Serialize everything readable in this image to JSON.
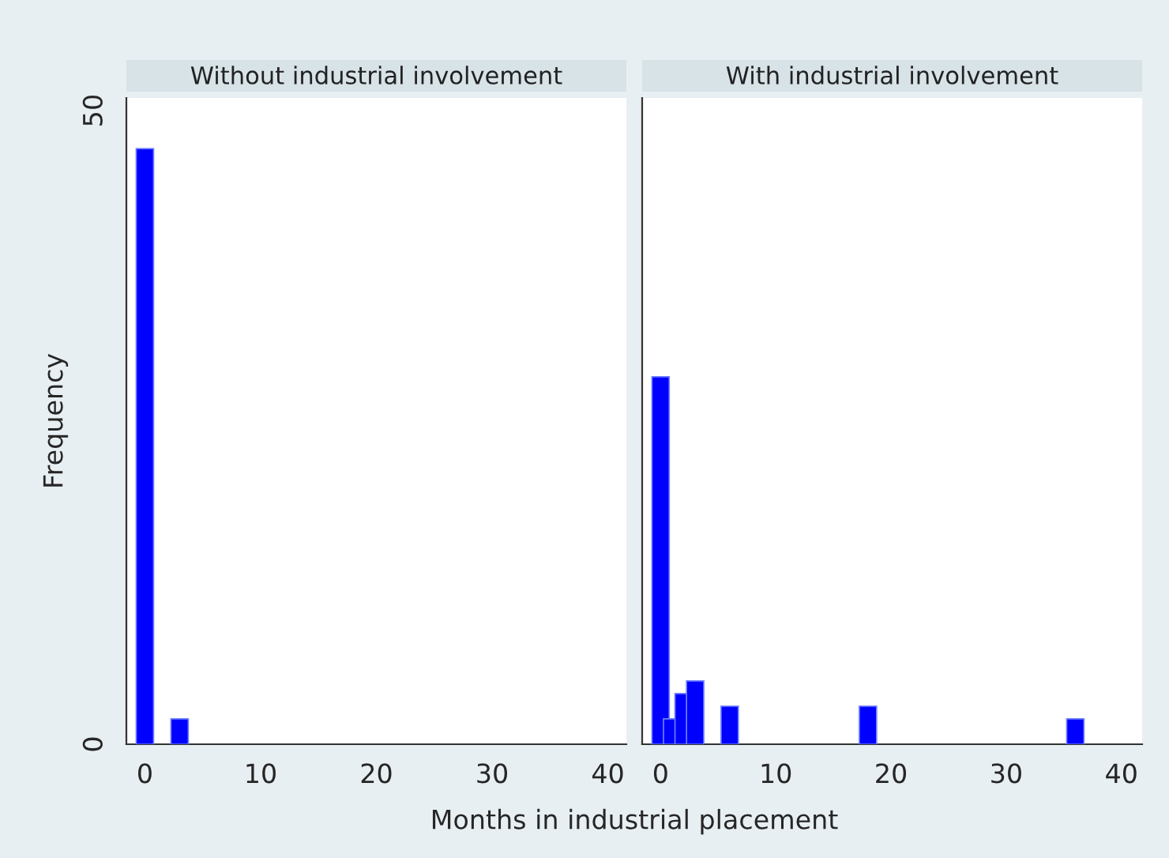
{
  "chart_data": [
    {
      "type": "bar",
      "title": "Without industrial involvement",
      "xlabel": "Months in industrial placement",
      "ylabel": "Frequency",
      "x": [
        0,
        3
      ],
      "values": [
        47,
        2
      ],
      "color": "#0000ff",
      "xlim": [
        -1.6,
        41.6
      ],
      "xticks": [
        0,
        10,
        20,
        30,
        40
      ],
      "ylim": [
        0,
        51
      ],
      "yticks": [
        0,
        50
      ],
      "grid": false
    },
    {
      "type": "bar",
      "title": "With industrial involvement",
      "x": [
        0,
        1,
        2,
        3,
        6,
        18,
        36
      ],
      "values": [
        29,
        2,
        4,
        5,
        3,
        3,
        2
      ],
      "color": "#0000ff",
      "xlim": [
        -1.6,
        41.8
      ],
      "xticks": [
        0,
        10,
        20,
        30,
        40
      ],
      "ylim": [
        0,
        51
      ],
      "yticks": [
        0,
        50
      ],
      "grid": false,
      "tick_labels": "x"
    }
  ]
}
